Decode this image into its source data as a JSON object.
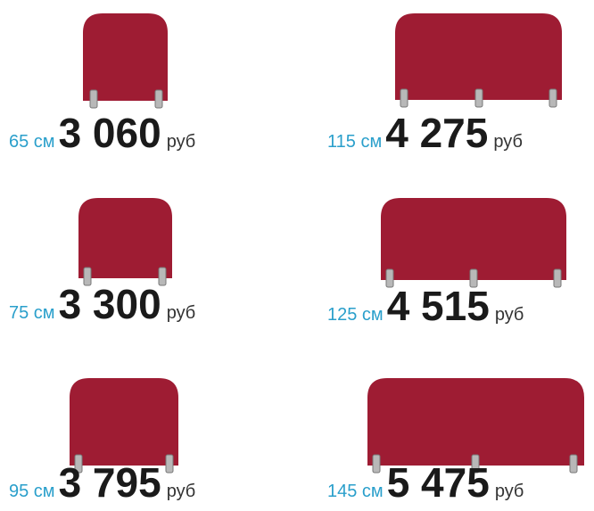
{
  "items": [
    {
      "size": "65 см",
      "price": "3 060",
      "currency": "руб"
    },
    {
      "size": "115 см",
      "price": "4 275",
      "currency": "руб"
    },
    {
      "size": "75 см",
      "price": "3 300",
      "currency": "руб"
    },
    {
      "size": "125 см",
      "price": "4 515",
      "currency": "руб"
    },
    {
      "size": "95 см",
      "price": "3 795",
      "currency": "руб"
    },
    {
      "size": "145 см",
      "price": "5 475",
      "currency": "руб"
    }
  ]
}
